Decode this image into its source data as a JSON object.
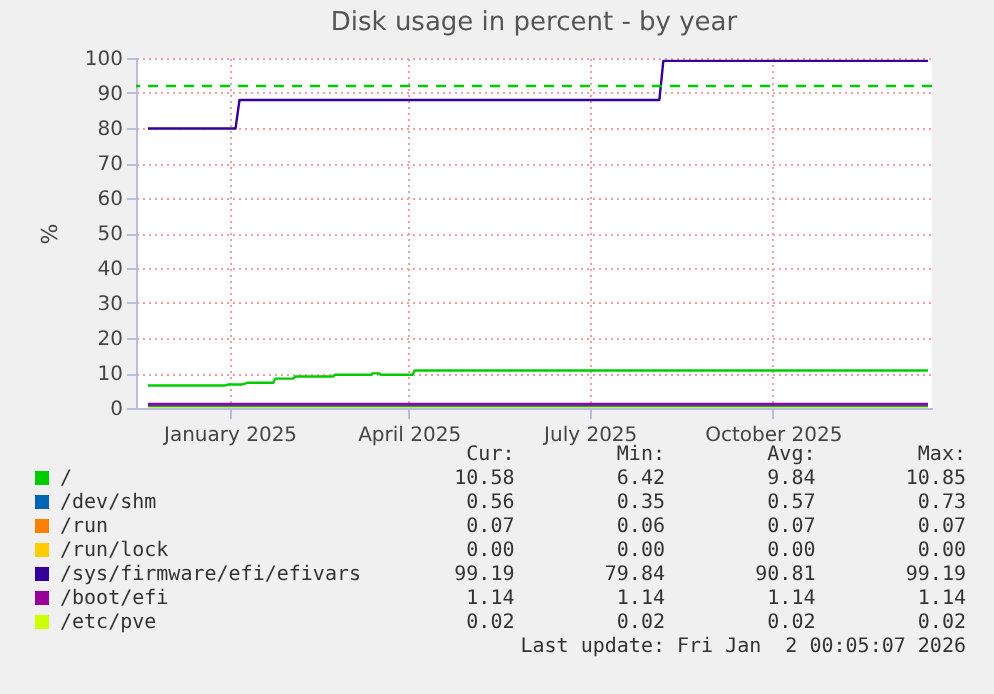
{
  "chart_data": {
    "type": "line",
    "title": "Disk usage in percent - by year",
    "ylabel": "%",
    "xlim": [
      "2024-11-29",
      "2026-01-03"
    ],
    "xticks": [
      {
        "value": "2025-01-15",
        "label": "January 2025"
      },
      {
        "value": "2025-04-15",
        "label": "April 2025"
      },
      {
        "value": "2025-07-15",
        "label": "July 2025"
      },
      {
        "value": "2025-10-15",
        "label": "October 2025"
      }
    ],
    "ylim": [
      0,
      100
    ],
    "yticks": [
      0,
      10,
      20,
      30,
      40,
      50,
      60,
      70,
      80,
      90,
      100
    ],
    "grid": true,
    "legend": "bottom",
    "series": [
      {
        "name": "/",
        "color": "#00cc00",
        "x": [
          "2024-12-05",
          "2025-01-13",
          "2025-01-14",
          "2025-01-21",
          "2025-01-24",
          "2025-02-06",
          "2025-02-07",
          "2025-02-16",
          "2025-02-17",
          "2025-03-08",
          "2025-03-09",
          "2025-03-27",
          "2025-03-28",
          "2025-03-31",
          "2025-04-01",
          "2025-04-17",
          "2025-04-18",
          "2026-01-01"
        ],
        "values": [
          6.42,
          6.42,
          6.7,
          6.7,
          7.2,
          7.2,
          8.4,
          8.4,
          9.0,
          9.0,
          9.5,
          9.5,
          9.9,
          9.9,
          9.5,
          9.5,
          10.7,
          10.7
        ]
      },
      {
        "name": "/dev/shm",
        "color": "#0066b3",
        "x": [
          "2024-12-05",
          "2026-01-01"
        ],
        "values": [
          0.56,
          0.56
        ]
      },
      {
        "name": "/run",
        "color": "#ff8000",
        "values": [
          null
        ]
      },
      {
        "name": "/run/lock",
        "color": "#ffcc00",
        "values": [
          null
        ]
      },
      {
        "name": "/sys/firmware/efi/efivars",
        "color": "#330099",
        "x": [
          "2024-12-05",
          "2025-01-18",
          "2025-01-20",
          "2025-08-19",
          "2025-08-21",
          "2026-01-01"
        ],
        "values": [
          79.84,
          79.84,
          88,
          88,
          99.19,
          99.19
        ]
      },
      {
        "name": "/boot/efi",
        "color": "#990099",
        "x": [
          "2024-12-05",
          "2026-01-01"
        ],
        "values": [
          1.14,
          1.14
        ]
      },
      {
        "name": "/etc/pve",
        "color": "#ccff00",
        "x": [
          "2024-12-05",
          "2026-01-01"
        ],
        "values": [
          0.02,
          0.02
        ]
      }
    ],
    "ref_lines": [
      {
        "axis": "y",
        "value": 92,
        "color": "#00cc00",
        "line_style": "dashed"
      }
    ],
    "annotations": [
      "Cur:",
      "Min:",
      "Avg:",
      "Max:",
      "10.58",
      "6.42",
      "9.84",
      "10.85",
      "0.56",
      "0.35",
      "0.57",
      "0.73",
      "0.07",
      "0.06",
      "0.07",
      "0.07",
      "0.00",
      "0.00",
      "0.00",
      "0.00",
      "99.19",
      "79.84",
      "90.81",
      "99.19",
      "1.14",
      "1.14",
      "1.14",
      "1.14",
      "0.02",
      "0.02",
      "0.02",
      "0.02",
      "Last update: Fri Jan  2 00:05:07 2026"
    ]
  }
}
